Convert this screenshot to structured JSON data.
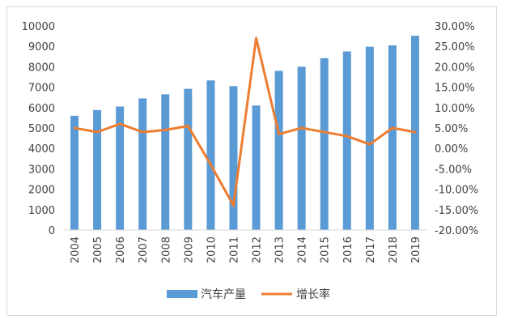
{
  "chart_data": {
    "type": "bar+line",
    "categories": [
      "2004",
      "2005",
      "2006",
      "2007",
      "2008",
      "2009",
      "2010",
      "2011",
      "2012",
      "2013",
      "2014",
      "2015",
      "2016",
      "2017",
      "2018",
      "2019"
    ],
    "series": [
      {
        "name": "汽车产量",
        "type": "bar",
        "axis": "left",
        "color": "#5b9bd5",
        "values": [
          5600,
          5880,
          6050,
          6450,
          6650,
          6920,
          7330,
          7050,
          6100,
          7800,
          8000,
          8420,
          8750,
          8980,
          9050,
          9520
        ]
      },
      {
        "name": "增长率",
        "type": "line",
        "axis": "right",
        "color": "#ed7d31",
        "values": [
          5.0,
          4.0,
          6.0,
          4.0,
          4.5,
          5.5,
          -4.0,
          -14.0,
          27.0,
          3.5,
          5.0,
          4.0,
          3.0,
          1.0,
          5.0,
          4.0
        ]
      }
    ],
    "y_left": {
      "min": 0,
      "max": 10000,
      "step": 1000,
      "ticks": [
        "0",
        "1000",
        "2000",
        "3000",
        "4000",
        "5000",
        "6000",
        "7000",
        "8000",
        "9000",
        "10000"
      ]
    },
    "y_right": {
      "min": -20,
      "max": 30,
      "step": 5,
      "ticks": [
        "-20.00%",
        "-15.00%",
        "-10.00%",
        "-5.00%",
        "0.00%",
        "5.00%",
        "10.00%",
        "15.00%",
        "20.00%",
        "25.00%",
        "30.00%"
      ]
    },
    "grid": false,
    "legend_position": "bottom"
  }
}
